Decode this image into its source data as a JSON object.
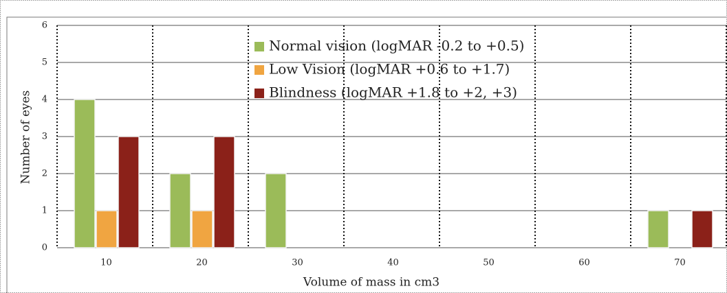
{
  "chart_data": {
    "type": "bar",
    "x_label": "Volume of mass in cm3",
    "y_label": "Number of eyes",
    "categories": [
      "10",
      "20",
      "30",
      "40",
      "50",
      "60",
      "70"
    ],
    "series": [
      {
        "name": "Normal vision (logMAR -0.2 to +0.5)",
        "color": "#9bbb59",
        "values": [
          4,
          2,
          2,
          0,
          0,
          0,
          1
        ]
      },
      {
        "name": "Low Vision (logMAR +0.6 to +1.7)",
        "color": "#f0a541",
        "values": [
          1,
          1,
          0,
          0,
          0,
          0,
          0
        ]
      },
      {
        "name": "Blindness (logMAR +1.8 to +2, +3)",
        "color": "#8b2119",
        "values": [
          3,
          3,
          0,
          0,
          0,
          0,
          1
        ]
      }
    ],
    "ylim": [
      0,
      6
    ],
    "yticks": [
      0,
      1,
      2,
      3,
      4,
      5,
      6
    ],
    "grid": true,
    "legend": "top"
  }
}
